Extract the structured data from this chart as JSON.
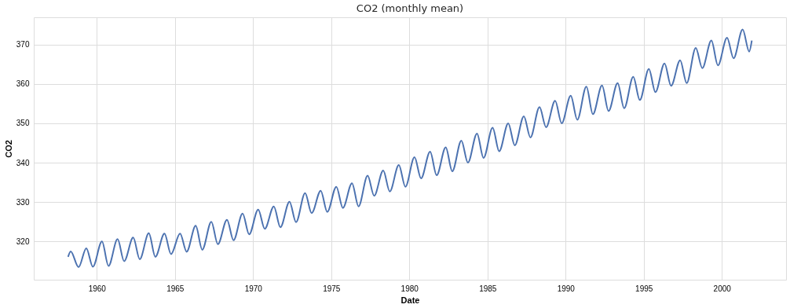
{
  "chart_data": {
    "type": "line",
    "title": "CO2 (monthly mean)",
    "xlabel": "Date",
    "ylabel": "CO2",
    "x": [
      "1958-03",
      "1958-05",
      "1958-11",
      "1959-05",
      "1959-10",
      "1960-05",
      "1960-10",
      "1961-05",
      "1961-10",
      "1962-05",
      "1962-10",
      "1963-05",
      "1963-10",
      "1964-05",
      "1964-10",
      "1965-05",
      "1965-10",
      "1966-05",
      "1966-10",
      "1967-05",
      "1967-10",
      "1968-05",
      "1968-10",
      "1969-05",
      "1969-10",
      "1970-05",
      "1970-10",
      "1971-05",
      "1971-10",
      "1972-05",
      "1972-10",
      "1973-05",
      "1973-10",
      "1974-05",
      "1974-10",
      "1975-05",
      "1975-10",
      "1976-05",
      "1976-10",
      "1977-05",
      "1977-10",
      "1978-05",
      "1978-10",
      "1979-05",
      "1979-10",
      "1980-05",
      "1980-10",
      "1981-05",
      "1981-10",
      "1982-05",
      "1982-10",
      "1983-05",
      "1983-10",
      "1984-05",
      "1984-10",
      "1985-05",
      "1985-10",
      "1986-05",
      "1986-10",
      "1987-05",
      "1987-10",
      "1988-05",
      "1988-10",
      "1989-05",
      "1989-10",
      "1990-05",
      "1990-10",
      "1991-05",
      "1991-10",
      "1992-05",
      "1992-10",
      "1993-05",
      "1993-10",
      "1994-05",
      "1994-10",
      "1995-05",
      "1995-10",
      "1996-05",
      "1996-10",
      "1997-05",
      "1997-10",
      "1998-05",
      "1998-10",
      "1999-05",
      "1999-10",
      "2000-05",
      "2000-10",
      "2001-05",
      "2001-10",
      "2001-12"
    ],
    "series": [
      {
        "color": "#4c72b0",
        "values": [
          316.1,
          317.5,
          313.5,
          318.3,
          313.6,
          320.0,
          313.8,
          320.6,
          315.0,
          321.0,
          315.5,
          322.1,
          316.1,
          322.0,
          316.8,
          322.0,
          317.4,
          324.0,
          317.9,
          325.0,
          319.3,
          325.5,
          320.3,
          327.1,
          321.8,
          328.1,
          323.2,
          328.9,
          323.6,
          330.1,
          324.9,
          332.3,
          327.2,
          332.9,
          327.5,
          333.9,
          328.5,
          334.8,
          328.9,
          336.7,
          331.6,
          338.0,
          332.7,
          339.4,
          333.9,
          341.4,
          336.0,
          342.8,
          336.8,
          343.9,
          337.8,
          345.6,
          340.0,
          347.4,
          341.2,
          348.9,
          342.9,
          350.0,
          344.4,
          351.8,
          346.4,
          354.1,
          349.0,
          355.7,
          350.0,
          357.0,
          350.9,
          359.3,
          352.3,
          359.6,
          353.1,
          360.2,
          353.8,
          361.8,
          355.9,
          363.8,
          357.9,
          365.2,
          359.5,
          366.0,
          360.2,
          369.1,
          364.0,
          371.0,
          364.7,
          371.7,
          366.5,
          373.8,
          368.2,
          371.0
        ]
      }
    ],
    "xlim": [
      "1955-12-20",
      "2004-02-10"
    ],
    "ylim": [
      310.3,
      376.9
    ],
    "xticks": [
      {
        "value": "1960",
        "label": "1960"
      },
      {
        "value": "1965",
        "label": "1965"
      },
      {
        "value": "1970",
        "label": "1970"
      },
      {
        "value": "1975",
        "label": "1975"
      },
      {
        "value": "1980",
        "label": "1980"
      },
      {
        "value": "1985",
        "label": "1985"
      },
      {
        "value": "1990",
        "label": "1990"
      },
      {
        "value": "1995",
        "label": "1995"
      },
      {
        "value": "2000",
        "label": "2000"
      }
    ],
    "yticks": [
      320,
      330,
      340,
      350,
      360,
      370
    ],
    "grid": true,
    "legend": false,
    "marker": "none",
    "line_style": "solid"
  }
}
